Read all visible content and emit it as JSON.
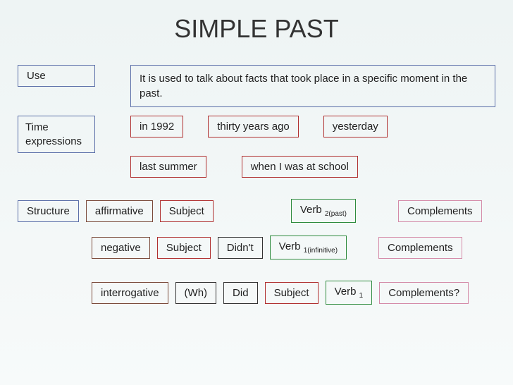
{
  "title": "SIMPLE PAST",
  "colors": {
    "navy": "#5a6ea8",
    "red": "#b03030",
    "green": "#2e8b3e",
    "darkgreen": "#1a6b2a",
    "pink": "#d48aa8",
    "black": "#333333",
    "brown": "#7a4a3a"
  },
  "use": {
    "label": "Use",
    "text": "It is used to talk about facts that took place in a specific moment in the past."
  },
  "time": {
    "label": "Time expressions",
    "items": [
      "in 1992",
      "thirty years ago",
      "yesterday",
      "last summer",
      "when I was at school"
    ]
  },
  "structure": {
    "label": "Structure",
    "rows": [
      {
        "type": "affirmative",
        "cells": [
          {
            "text": "affirmative",
            "color": "brown"
          },
          {
            "text": "Subject",
            "color": "red"
          },
          {
            "text": "Verb ",
            "sub": "2(past)",
            "color": "green",
            "leftgap": 90
          },
          {
            "text": "Complements",
            "color": "pink",
            "leftgap": 40
          }
        ]
      },
      {
        "type": "negative",
        "cells": [
          {
            "text": "negative",
            "color": "brown"
          },
          {
            "text": "Subject",
            "color": "red"
          },
          {
            "text": "Didn't",
            "color": "black"
          },
          {
            "text": "Verb ",
            "sub": "1(infinitive)",
            "color": "green"
          },
          {
            "text": "Complements",
            "color": "pink",
            "leftgap": 25
          }
        ]
      },
      {
        "type": "interrogative",
        "cells": [
          {
            "text": "interrogative",
            "color": "brown"
          },
          {
            "text": "(Wh)",
            "color": "black"
          },
          {
            "text": "Did",
            "color": "black"
          },
          {
            "text": "Subject",
            "color": "red"
          },
          {
            "text": "Verb ",
            "sub": "1",
            "color": "green"
          },
          {
            "text": "Complements?",
            "color": "pink"
          }
        ]
      }
    ]
  }
}
